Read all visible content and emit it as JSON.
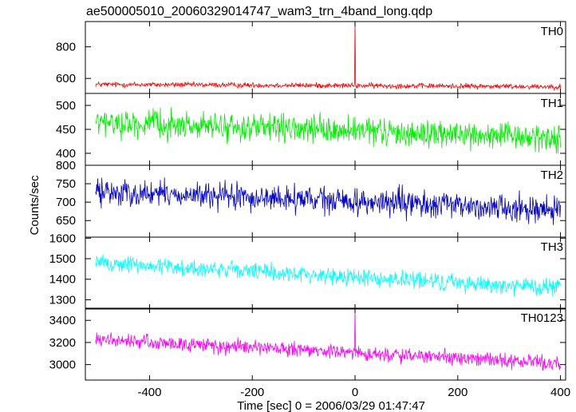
{
  "chart_data": {
    "type": "line",
    "title": "ae500005010_20060329014747_wam3_trn_4band_long.qdp",
    "xlabel": "Time [sec] 0 = 2006/03/29 01:47:47",
    "ylabel": "Counts/sec",
    "xlim": [
      -525,
      410
    ],
    "x_ticks": [
      -400,
      -200,
      0,
      200,
      400
    ],
    "grid": false,
    "legend": "none",
    "x_sampling": {
      "start": -505,
      "end": 400,
      "step": 1
    },
    "panels": [
      {
        "name": "TH0",
        "color": "#ff0000",
        "ylim": [
          505,
          960
        ],
        "y_ticks": [
          600,
          800
        ],
        "trend": {
          "start": 562,
          "end": 548
        },
        "noise_amplitude": 18,
        "spikes": [
          {
            "x": 0,
            "y": 960
          }
        ]
      },
      {
        "name": "TH1",
        "color": "#00ee00",
        "ylim": [
          375,
          525
        ],
        "y_ticks": [
          400,
          450,
          500
        ],
        "trend": {
          "start": 464,
          "end": 431
        },
        "noise_amplitude": 30,
        "spikes": []
      },
      {
        "name": "TH2",
        "color": "#0000cc",
        "ylim": [
          605,
          800
        ],
        "y_ticks": [
          650,
          700,
          750,
          800
        ],
        "trend": {
          "start": 728,
          "end": 680
        },
        "noise_amplitude": 38,
        "spikes": []
      },
      {
        "name": "TH3",
        "color": "#00ffff",
        "ylim": [
          1255,
          1605
        ],
        "y_ticks": [
          1300,
          1400,
          1500,
          1600
        ],
        "trend": {
          "start": 1480,
          "end": 1355
        },
        "noise_amplitude": 45,
        "spikes": []
      },
      {
        "name": "TH0123",
        "color": "#ff00ff",
        "ylim": [
          2860,
          3510
        ],
        "y_ticks": [
          3000,
          3200,
          3400
        ],
        "trend": {
          "start": 3225,
          "end": 3010
        },
        "noise_amplitude": 70,
        "spikes": [
          {
            "x": 0,
            "y": 3510
          }
        ]
      }
    ]
  }
}
